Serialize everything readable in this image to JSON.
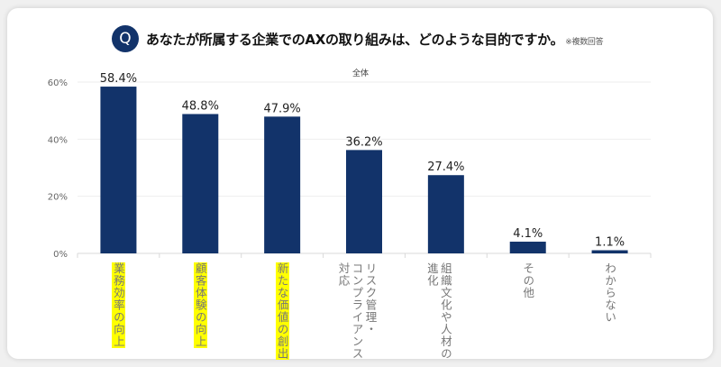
{
  "header": {
    "badge": "Q",
    "question": "あなたが所属する企業でのAXの取り組みは、どのような目的ですか。",
    "note": "※複数回答"
  },
  "colors": {
    "bar": "#12336a",
    "highlight": "#ffff00",
    "badge": "#12336a"
  },
  "chart_data": {
    "type": "bar",
    "title": "全体",
    "categories": [
      {
        "label": "業務効率の向上",
        "lines": [
          "業務効率の向上"
        ],
        "highlighted": true
      },
      {
        "label": "顧客体験の向上",
        "lines": [
          "顧客体験の向上"
        ],
        "highlighted": true
      },
      {
        "label": "新たな価値の創出",
        "lines": [
          "新たな価値の創出"
        ],
        "highlighted": true
      },
      {
        "label": "リスク管理・コンプライアンス対応",
        "lines": [
          "リスク管理・",
          "コンプライアンス",
          "対応"
        ],
        "highlighted": false
      },
      {
        "label": "組織文化や人材の進化",
        "lines": [
          "組織文化や人材の",
          "進化"
        ],
        "highlighted": false
      },
      {
        "label": "その他",
        "lines": [
          "その他"
        ],
        "highlighted": false
      },
      {
        "label": "わからない",
        "lines": [
          "わからない"
        ],
        "highlighted": false
      }
    ],
    "values": [
      58.4,
      48.8,
      47.9,
      36.2,
      27.4,
      4.1,
      1.1
    ],
    "data_labels": [
      "58.4%",
      "48.8%",
      "47.9%",
      "36.2%",
      "27.4%",
      "4.1%",
      "1.1%"
    ],
    "yticks": [
      "0%",
      "20%",
      "40%",
      "60%"
    ],
    "ylim": [
      0,
      60
    ],
    "grid": true,
    "legend": "none"
  }
}
